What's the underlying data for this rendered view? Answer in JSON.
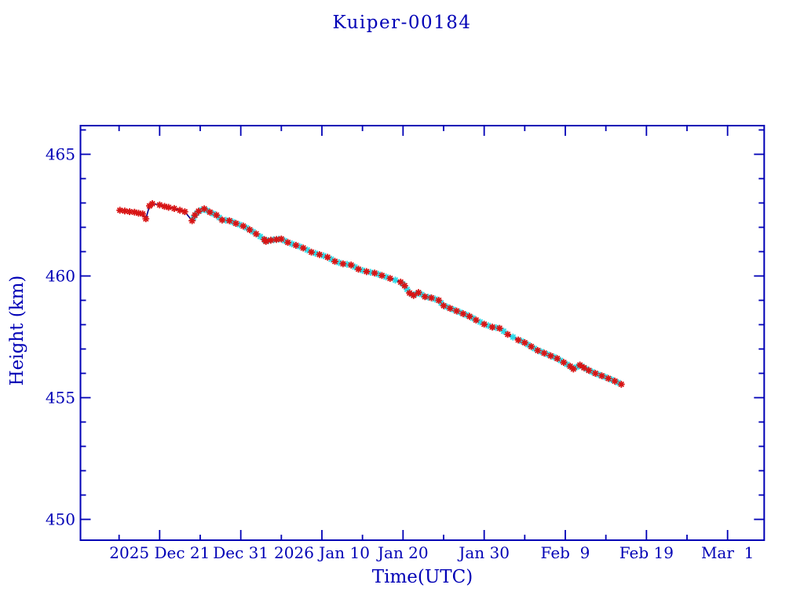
{
  "page": {
    "background": "#ffffff"
  },
  "chart_data": {
    "type": "line",
    "title": "Kuiper-00184",
    "xlabel": "Time(UTC)",
    "ylabel": "Height (km)",
    "axis_color": "#0000b6",
    "line_color": "#00008b",
    "grid": false,
    "legend": "none",
    "x_axis": {
      "unit": "days relative to 2025 Dec 21",
      "lim": [
        -9.76,
        74.5
      ],
      "major_ticks": [
        0,
        10,
        20,
        30,
        40,
        50,
        60,
        70
      ],
      "minor_ticks": [
        -5,
        5,
        15,
        25,
        35,
        45,
        55,
        65
      ],
      "tick_labels": [
        "2025 Dec 21",
        "Dec 31",
        "2026 Jan 10",
        "Jan 20",
        "Jan 30",
        "Feb  9",
        "Feb 19",
        "Mar  1"
      ]
    },
    "y_axis": {
      "unit": "km",
      "lim": [
        449.2,
        466.2
      ],
      "major_ticks": [
        450,
        455,
        460,
        465
      ],
      "tick_labels": [
        "450",
        "455",
        "460",
        "465"
      ],
      "minor_step": 1
    },
    "series": [
      {
        "name": "height-secondary",
        "marker": "asterisk",
        "color": "#2ed9e6",
        "connect": false,
        "points": [
          [
            4.18,
            462.39
          ],
          [
            4.58,
            462.58
          ],
          [
            5.15,
            462.71
          ],
          [
            5.85,
            462.69
          ],
          [
            6.6,
            462.56
          ],
          [
            7.35,
            462.4
          ],
          [
            8.15,
            462.29
          ],
          [
            9.0,
            462.22
          ],
          [
            9.85,
            462.11
          ],
          [
            10.7,
            461.98
          ],
          [
            11.5,
            461.82
          ],
          [
            12.4,
            461.62
          ],
          [
            13.0,
            461.46
          ],
          [
            13.4,
            461.45
          ],
          [
            14.05,
            461.49
          ],
          [
            14.7,
            461.51
          ],
          [
            15.4,
            461.45
          ],
          [
            16.3,
            461.32
          ],
          [
            17.25,
            461.21
          ],
          [
            18.2,
            461.07
          ],
          [
            19.2,
            460.93
          ],
          [
            20.2,
            460.83
          ],
          [
            21.15,
            460.69
          ],
          [
            22.1,
            460.55
          ],
          [
            23.1,
            460.48
          ],
          [
            24.05,
            460.37
          ],
          [
            25.0,
            460.23
          ],
          [
            26.0,
            460.15
          ],
          [
            26.95,
            460.07
          ],
          [
            27.9,
            459.96
          ],
          [
            29.05,
            459.83
          ],
          [
            29.95,
            459.68
          ],
          [
            30.5,
            459.45
          ],
          [
            31.05,
            459.25
          ],
          [
            31.6,
            459.26
          ],
          [
            32.3,
            459.24
          ],
          [
            33.1,
            459.13
          ],
          [
            33.95,
            459.05
          ],
          [
            34.7,
            458.89
          ],
          [
            35.4,
            458.73
          ],
          [
            36.2,
            458.62
          ],
          [
            37.0,
            458.51
          ],
          [
            37.8,
            458.4
          ],
          [
            38.6,
            458.27
          ],
          [
            39.5,
            458.11
          ],
          [
            40.5,
            457.96
          ],
          [
            41.45,
            457.88
          ],
          [
            42.4,
            457.73
          ],
          [
            43.55,
            457.49
          ],
          [
            44.6,
            457.32
          ],
          [
            45.4,
            457.18
          ],
          [
            46.2,
            457.02
          ],
          [
            47.0,
            456.89
          ],
          [
            47.8,
            456.78
          ],
          [
            48.6,
            456.67
          ],
          [
            49.4,
            456.53
          ],
          [
            50.2,
            456.37
          ],
          [
            50.8,
            456.24
          ],
          [
            51.4,
            456.26
          ],
          [
            52.05,
            456.29
          ],
          [
            52.6,
            456.18
          ],
          [
            53.3,
            456.06
          ],
          [
            54.1,
            455.95
          ],
          [
            54.9,
            455.85
          ],
          [
            55.7,
            455.74
          ],
          [
            56.5,
            455.62
          ]
        ]
      },
      {
        "name": "height-observed",
        "marker": "asterisk",
        "color": "#d81414",
        "connect": true,
        "points": [
          [
            -4.9,
            462.7
          ],
          [
            -4.3,
            462.67
          ],
          [
            -3.7,
            462.64
          ],
          [
            -3.1,
            462.62
          ],
          [
            -2.6,
            462.58
          ],
          [
            -2.1,
            462.55
          ],
          [
            -1.7,
            462.35
          ],
          [
            -1.25,
            462.88
          ],
          [
            -0.9,
            462.97
          ],
          [
            0.0,
            462.92
          ],
          [
            0.6,
            462.86
          ],
          [
            1.1,
            462.82
          ],
          [
            1.8,
            462.77
          ],
          [
            2.5,
            462.7
          ],
          [
            3.1,
            462.64
          ],
          [
            4.0,
            462.27
          ],
          [
            4.35,
            462.5
          ],
          [
            4.8,
            462.66
          ],
          [
            5.5,
            462.76
          ],
          [
            6.2,
            462.62
          ],
          [
            7.0,
            462.5
          ],
          [
            7.7,
            462.3
          ],
          [
            8.6,
            462.27
          ],
          [
            9.4,
            462.16
          ],
          [
            10.3,
            462.05
          ],
          [
            11.1,
            461.9
          ],
          [
            11.9,
            461.73
          ],
          [
            12.9,
            461.5
          ],
          [
            13.1,
            461.42
          ],
          [
            13.7,
            461.47
          ],
          [
            14.4,
            461.5
          ],
          [
            15.0,
            461.52
          ],
          [
            15.8,
            461.38
          ],
          [
            16.8,
            461.26
          ],
          [
            17.7,
            461.15
          ],
          [
            18.7,
            460.98
          ],
          [
            19.7,
            460.88
          ],
          [
            20.7,
            460.77
          ],
          [
            21.6,
            460.6
          ],
          [
            22.6,
            460.5
          ],
          [
            23.6,
            460.45
          ],
          [
            24.5,
            460.28
          ],
          [
            25.5,
            460.18
          ],
          [
            26.5,
            460.12
          ],
          [
            27.4,
            460.02
          ],
          [
            28.4,
            459.9
          ],
          [
            29.7,
            459.75
          ],
          [
            30.2,
            459.6
          ],
          [
            30.8,
            459.3
          ],
          [
            31.3,
            459.2
          ],
          [
            31.9,
            459.32
          ],
          [
            32.7,
            459.15
          ],
          [
            33.5,
            459.1
          ],
          [
            34.4,
            459.0
          ],
          [
            35.0,
            458.78
          ],
          [
            35.8,
            458.67
          ],
          [
            36.6,
            458.56
          ],
          [
            37.4,
            458.45
          ],
          [
            38.2,
            458.34
          ],
          [
            39.0,
            458.19
          ],
          [
            40.0,
            458.02
          ],
          [
            41.0,
            457.9
          ],
          [
            41.9,
            457.85
          ],
          [
            42.9,
            457.6
          ],
          [
            44.2,
            457.37
          ],
          [
            45.0,
            457.26
          ],
          [
            45.8,
            457.1
          ],
          [
            46.6,
            456.94
          ],
          [
            47.4,
            456.83
          ],
          [
            48.2,
            456.72
          ],
          [
            49.0,
            456.61
          ],
          [
            49.8,
            456.45
          ],
          [
            50.6,
            456.29
          ],
          [
            51.0,
            456.18
          ],
          [
            51.8,
            456.34
          ],
          [
            52.3,
            456.23
          ],
          [
            52.9,
            456.12
          ],
          [
            53.7,
            456.0
          ],
          [
            54.5,
            455.9
          ],
          [
            55.3,
            455.79
          ],
          [
            56.1,
            455.68
          ],
          [
            56.9,
            455.55
          ]
        ]
      }
    ]
  }
}
